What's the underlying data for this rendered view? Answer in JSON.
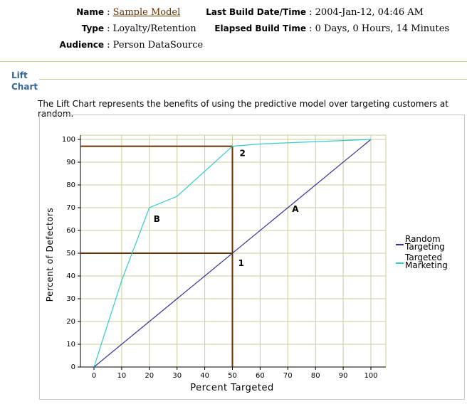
{
  "header": {
    "name_label": "Name",
    "name_value": "Sample Model",
    "type_label": "Type",
    "type_value": "Loyalty/Retention",
    "audience_label": "Audience",
    "audience_value": "Person DataSource",
    "build_date_label": "Last Build Date/Time",
    "build_date_value": "2004-Jan-12, 04:46 AM",
    "elapsed_label": "Elapsed Build Time",
    "elapsed_value": "0 Days, 0 Hours, 14 Minutes"
  },
  "section": {
    "title_line1": "Lift",
    "title_line2": "Chart",
    "description": "The Lift Chart represents the benefits of using the predictive model over targeting customers at random."
  },
  "colors": {
    "random": "#333399",
    "targeted": "#33cccc",
    "reference": "#663300",
    "grid": "#cccc99"
  },
  "chart_data": {
    "type": "line",
    "xlabel": "Percent Targeted",
    "ylabel": "Percent of Defectors",
    "xlim": [
      0,
      100
    ],
    "ylim": [
      0,
      100
    ],
    "xticks": [
      0,
      10,
      20,
      30,
      40,
      50,
      60,
      70,
      80,
      90,
      100
    ],
    "yticks": [
      0,
      10,
      20,
      30,
      40,
      50,
      60,
      70,
      80,
      90,
      100
    ],
    "grid": true,
    "legend_position": "right",
    "series": [
      {
        "name": "Random Targeting",
        "x": [
          0,
          100
        ],
        "y": [
          0,
          100
        ],
        "color": "#333399"
      },
      {
        "name": "Targeted Marketing",
        "x": [
          0,
          10,
          20,
          30,
          50,
          60,
          100
        ],
        "y": [
          0,
          38,
          70,
          75,
          97,
          98,
          100
        ],
        "color": "#33cccc"
      }
    ],
    "reference_lines": [
      {
        "x": 50,
        "y": 97
      },
      {
        "x": 50,
        "y": 50
      }
    ],
    "annotations": [
      {
        "text": "2",
        "x": 50,
        "y": 97
      },
      {
        "text": "1",
        "x": 50,
        "y": 50
      },
      {
        "text": "B",
        "x": 20,
        "y": 70
      },
      {
        "text": "A",
        "x": 70,
        "y": 70
      }
    ]
  }
}
